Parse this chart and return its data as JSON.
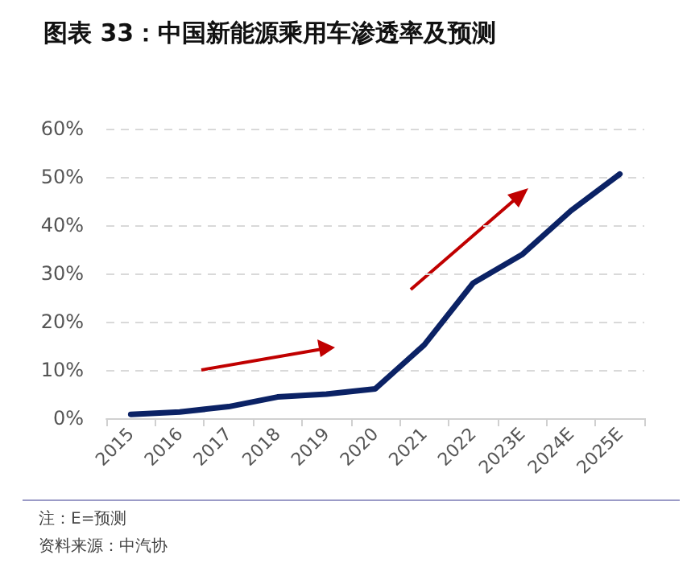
{
  "chart_data": {
    "type": "line",
    "title": "图表 33：中国新能源乘用车渗透率及预测",
    "categories": [
      "2015",
      "2016",
      "2017",
      "2018",
      "2019",
      "2020",
      "2021",
      "2022",
      "2023E",
      "2024E",
      "2025E"
    ],
    "series": [
      {
        "color": "#0b2265",
        "values": [
          0.8,
          1.3,
          2.4,
          4.4,
          5.0,
          6.1,
          15.2,
          28.0,
          33.9,
          43.0,
          50.6
        ]
      }
    ],
    "ylim": [
      0,
      60
    ],
    "yticks": [
      {
        "value": 0,
        "label": "0%"
      },
      {
        "value": 10,
        "label": "10%"
      },
      {
        "value": 20,
        "label": "20%"
      },
      {
        "value": 30,
        "label": "30%"
      },
      {
        "value": 40,
        "label": "40%"
      },
      {
        "value": 50,
        "label": "50%"
      },
      {
        "value": 60,
        "label": "60%"
      }
    ],
    "grid": "y",
    "marker": "none",
    "line_style": "solid",
    "annotations": [
      "注：E=预测",
      "资料来源：中汽协"
    ]
  }
}
